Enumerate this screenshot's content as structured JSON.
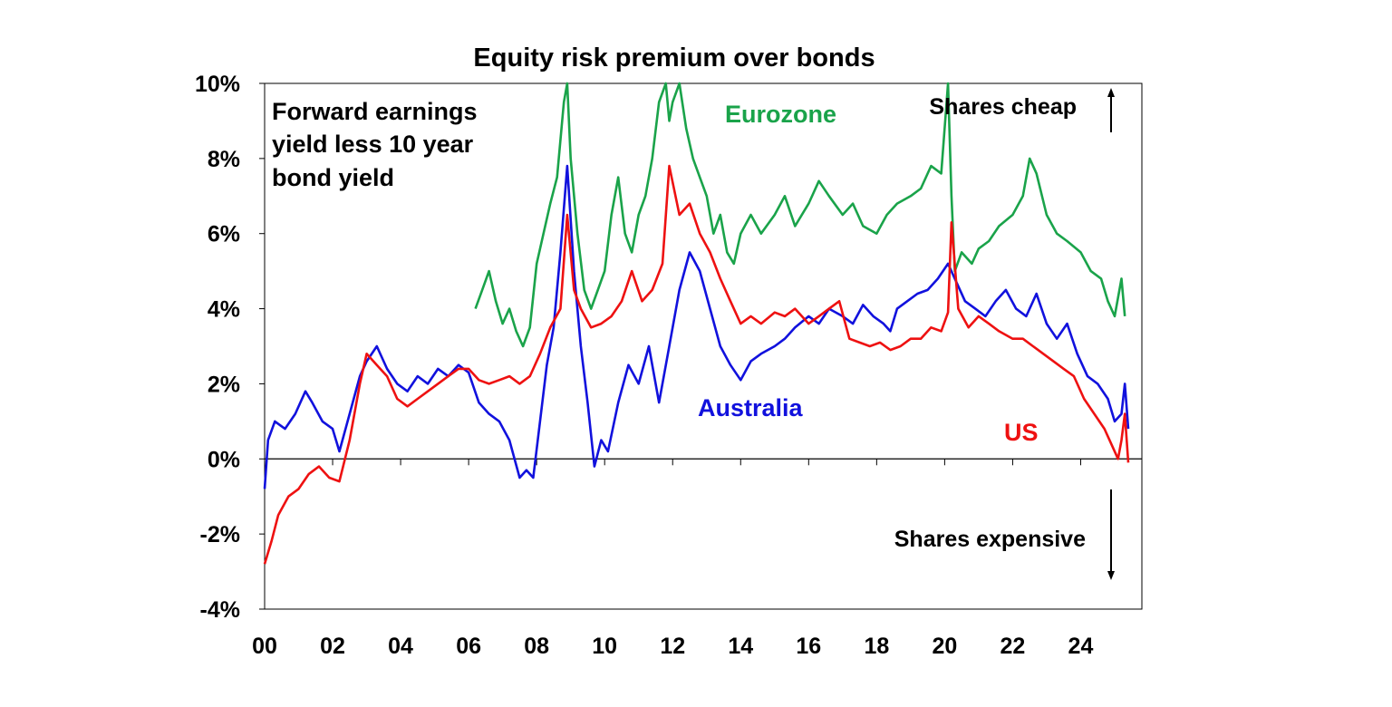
{
  "chart_data": {
    "type": "line",
    "title": "Equity risk premium over bonds",
    "subtitle": "Forward earnings yield less 10 year bond yield",
    "subtitle_lines": [
      "Forward earnings",
      "yield less 10 year",
      "bond yield"
    ],
    "x_range": [
      2000,
      2025.8
    ],
    "ylim": [
      -4,
      10
    ],
    "y_ticks": [
      -4,
      -2,
      0,
      2,
      4,
      6,
      8,
      10
    ],
    "y_tick_labels": [
      "-4%",
      "-2%",
      "0%",
      "2%",
      "4%",
      "6%",
      "8%",
      "10%"
    ],
    "x_ticks": [
      2000,
      2002,
      2004,
      2006,
      2008,
      2010,
      2012,
      2014,
      2016,
      2018,
      2020,
      2022,
      2024
    ],
    "x_tick_labels": [
      "00",
      "02",
      "04",
      "06",
      "08",
      "10",
      "12",
      "14",
      "16",
      "18",
      "20",
      "22",
      "24"
    ],
    "annotations": {
      "cheap": "Shares cheap",
      "expensive": "Shares expensive"
    },
    "series": [
      {
        "name": "Eurozone",
        "color": "#1aa34a",
        "x": [
          2006.2,
          2006.4,
          2006.6,
          2006.8,
          2007.0,
          2007.2,
          2007.4,
          2007.6,
          2007.8,
          2008.0,
          2008.2,
          2008.4,
          2008.6,
          2008.8,
          2008.9,
          2009.0,
          2009.2,
          2009.4,
          2009.6,
          2009.8,
          2010.0,
          2010.2,
          2010.4,
          2010.6,
          2010.8,
          2011.0,
          2011.2,
          2011.4,
          2011.6,
          2011.8,
          2011.9,
          2012.0,
          2012.2,
          2012.4,
          2012.6,
          2012.8,
          2013.0,
          2013.2,
          2013.4,
          2013.6,
          2013.8,
          2014.0,
          2014.3,
          2014.6,
          2015.0,
          2015.3,
          2015.6,
          2016.0,
          2016.3,
          2016.6,
          2017.0,
          2017.3,
          2017.6,
          2018.0,
          2018.3,
          2018.6,
          2019.0,
          2019.3,
          2019.6,
          2019.9,
          2020.1,
          2020.2,
          2020.3,
          2020.5,
          2020.8,
          2021.0,
          2021.3,
          2021.6,
          2022.0,
          2022.3,
          2022.5,
          2022.7,
          2023.0,
          2023.3,
          2023.6,
          2024.0,
          2024.3,
          2024.6,
          2024.8,
          2025.0,
          2025.2,
          2025.3
        ],
        "y": [
          4.0,
          4.5,
          5.0,
          4.2,
          3.6,
          4.0,
          3.4,
          3.0,
          3.5,
          5.2,
          6.0,
          6.8,
          7.5,
          9.5,
          10.0,
          8.0,
          6.0,
          4.5,
          4.0,
          4.5,
          5.0,
          6.5,
          7.5,
          6.0,
          5.5,
          6.5,
          7.0,
          8.0,
          9.5,
          10.0,
          9.0,
          9.5,
          10.0,
          8.8,
          8.0,
          7.5,
          7.0,
          6.0,
          6.5,
          5.5,
          5.2,
          6.0,
          6.5,
          6.0,
          6.5,
          7.0,
          6.2,
          6.8,
          7.4,
          7.0,
          6.5,
          6.8,
          6.2,
          6.0,
          6.5,
          6.8,
          7.0,
          7.2,
          7.8,
          7.6,
          10.5,
          7.0,
          5.0,
          5.5,
          5.2,
          5.6,
          5.8,
          6.2,
          6.5,
          7.0,
          8.0,
          7.6,
          6.5,
          6.0,
          5.8,
          5.5,
          5.0,
          4.8,
          4.2,
          3.8,
          4.8,
          3.8
        ]
      },
      {
        "name": "Australia",
        "color": "#1111dd",
        "x": [
          2000.0,
          2000.1,
          2000.3,
          2000.6,
          2000.9,
          2001.2,
          2001.4,
          2001.7,
          2002.0,
          2002.2,
          2002.5,
          2002.8,
          2003.0,
          2003.3,
          2003.6,
          2003.9,
          2004.2,
          2004.5,
          2004.8,
          2005.1,
          2005.4,
          2005.7,
          2006.0,
          2006.3,
          2006.6,
          2006.9,
          2007.2,
          2007.5,
          2007.7,
          2007.9,
          2008.1,
          2008.3,
          2008.5,
          2008.7,
          2008.9,
          2009.1,
          2009.3,
          2009.5,
          2009.7,
          2009.9,
          2010.1,
          2010.4,
          2010.7,
          2011.0,
          2011.3,
          2011.6,
          2011.9,
          2012.2,
          2012.5,
          2012.8,
          2013.1,
          2013.4,
          2013.7,
          2014.0,
          2014.3,
          2014.6,
          2015.0,
          2015.3,
          2015.6,
          2016.0,
          2016.3,
          2016.6,
          2017.0,
          2017.3,
          2017.6,
          2017.9,
          2018.2,
          2018.4,
          2018.6,
          2018.9,
          2019.2,
          2019.5,
          2019.8,
          2020.1,
          2020.3,
          2020.6,
          2020.9,
          2021.2,
          2021.5,
          2021.8,
          2022.1,
          2022.4,
          2022.7,
          2023.0,
          2023.3,
          2023.6,
          2023.9,
          2024.2,
          2024.5,
          2024.8,
          2025.0,
          2025.2,
          2025.3,
          2025.4
        ],
        "y": [
          -0.8,
          0.5,
          1.0,
          0.8,
          1.2,
          1.8,
          1.5,
          1.0,
          0.8,
          0.2,
          1.2,
          2.2,
          2.6,
          3.0,
          2.4,
          2.0,
          1.8,
          2.2,
          2.0,
          2.4,
          2.2,
          2.5,
          2.3,
          1.5,
          1.2,
          1.0,
          0.5,
          -0.5,
          -0.3,
          -0.5,
          1.0,
          2.5,
          3.5,
          5.5,
          7.8,
          5.0,
          3.0,
          1.5,
          -0.2,
          0.5,
          0.2,
          1.5,
          2.5,
          2.0,
          3.0,
          1.5,
          3.0,
          4.5,
          5.5,
          5.0,
          4.0,
          3.0,
          2.5,
          2.1,
          2.6,
          2.8,
          3.0,
          3.2,
          3.5,
          3.8,
          3.6,
          4.0,
          3.8,
          3.6,
          4.1,
          3.8,
          3.6,
          3.4,
          4.0,
          4.2,
          4.4,
          4.5,
          4.8,
          5.2,
          4.8,
          4.2,
          4.0,
          3.8,
          4.2,
          4.5,
          4.0,
          3.8,
          4.4,
          3.6,
          3.2,
          3.6,
          2.8,
          2.2,
          2.0,
          1.6,
          1.0,
          1.2,
          2.0,
          0.8
        ]
      },
      {
        "name": "US",
        "color": "#ee1111",
        "x": [
          2000.0,
          2000.2,
          2000.4,
          2000.7,
          2001.0,
          2001.3,
          2001.6,
          2001.9,
          2002.2,
          2002.5,
          2002.8,
          2003.0,
          2003.3,
          2003.6,
          2003.9,
          2004.2,
          2004.5,
          2004.8,
          2005.1,
          2005.4,
          2005.7,
          2006.0,
          2006.3,
          2006.6,
          2006.9,
          2007.2,
          2007.5,
          2007.8,
          2008.1,
          2008.4,
          2008.7,
          2008.9,
          2009.1,
          2009.3,
          2009.6,
          2009.9,
          2010.2,
          2010.5,
          2010.8,
          2011.1,
          2011.4,
          2011.7,
          2011.9,
          2012.2,
          2012.5,
          2012.8,
          2013.1,
          2013.4,
          2013.7,
          2014.0,
          2014.3,
          2014.6,
          2015.0,
          2015.3,
          2015.6,
          2016.0,
          2016.3,
          2016.6,
          2016.9,
          2017.2,
          2017.5,
          2017.8,
          2018.1,
          2018.4,
          2018.7,
          2019.0,
          2019.3,
          2019.6,
          2019.9,
          2020.1,
          2020.2,
          2020.4,
          2020.7,
          2021.0,
          2021.3,
          2021.6,
          2022.0,
          2022.3,
          2022.6,
          2022.9,
          2023.2,
          2023.5,
          2023.8,
          2024.1,
          2024.4,
          2024.7,
          2024.9,
          2025.1,
          2025.2,
          2025.3,
          2025.4
        ],
        "y": [
          -2.8,
          -2.2,
          -1.5,
          -1.0,
          -0.8,
          -0.4,
          -0.2,
          -0.5,
          -0.6,
          0.5,
          2.0,
          2.8,
          2.5,
          2.2,
          1.6,
          1.4,
          1.6,
          1.8,
          2.0,
          2.2,
          2.4,
          2.4,
          2.1,
          2.0,
          2.1,
          2.2,
          2.0,
          2.2,
          2.8,
          3.5,
          4.0,
          6.5,
          4.5,
          4.0,
          3.5,
          3.6,
          3.8,
          4.2,
          5.0,
          4.2,
          4.5,
          5.2,
          7.8,
          6.5,
          6.8,
          6.0,
          5.5,
          4.8,
          4.2,
          3.6,
          3.8,
          3.6,
          3.9,
          3.8,
          4.0,
          3.6,
          3.8,
          4.0,
          4.2,
          3.2,
          3.1,
          3.0,
          3.1,
          2.9,
          3.0,
          3.2,
          3.2,
          3.5,
          3.4,
          3.9,
          6.3,
          4.0,
          3.5,
          3.8,
          3.6,
          3.4,
          3.2,
          3.2,
          3.0,
          2.8,
          2.6,
          2.4,
          2.2,
          1.6,
          1.2,
          0.8,
          0.4,
          0.0,
          0.5,
          1.2,
          -0.1
        ]
      }
    ],
    "series_label_text": {
      "eurozone": "Eurozone",
      "australia": "Australia",
      "us": "US"
    }
  }
}
